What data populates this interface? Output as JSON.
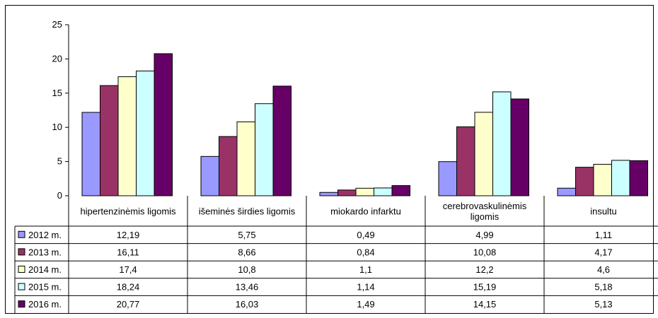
{
  "chart_data": {
    "type": "bar",
    "title": "",
    "xlabel": "",
    "ylabel": "",
    "ylim": [
      0,
      25
    ],
    "yticks": [
      0,
      5,
      10,
      15,
      20,
      25
    ],
    "grid": false,
    "legend": "data-table-left",
    "categories": [
      [
        "hipertenzinėmis ligomis"
      ],
      [
        "išeminės širdies ligomis"
      ],
      [
        "miokardo infarktu"
      ],
      [
        "cerebrovaskulinėmis",
        "ligomis"
      ],
      [
        "insultu"
      ]
    ],
    "series": [
      {
        "name": "2012 m.",
        "color": "#9999FF",
        "values": [
          12.19,
          5.75,
          0.49,
          4.99,
          1.11
        ],
        "labels": [
          "12,19",
          "5,75",
          "0,49",
          "4,99",
          "1,11"
        ]
      },
      {
        "name": "2013 m.",
        "color": "#993366",
        "values": [
          16.11,
          8.66,
          0.84,
          10.08,
          4.17
        ],
        "labels": [
          "16,11",
          "8,66",
          "0,84",
          "10,08",
          "4,17"
        ]
      },
      {
        "name": "2014 m.",
        "color": "#FFFFCC",
        "values": [
          17.4,
          10.8,
          1.1,
          12.2,
          4.6
        ],
        "labels": [
          "17,4",
          "10,8",
          "1,1",
          "12,2",
          "4,6"
        ]
      },
      {
        "name": "2015 m.",
        "color": "#CCFFFF",
        "values": [
          18.24,
          13.46,
          1.14,
          15.19,
          5.18
        ],
        "labels": [
          "18,24",
          "13,46",
          "1,14",
          "15,19",
          "5,18"
        ]
      },
      {
        "name": "2016 m.",
        "color": "#660066",
        "values": [
          20.77,
          16.03,
          1.49,
          14.15,
          5.13
        ],
        "labels": [
          "20,77",
          "16,03",
          "1,49",
          "14,15",
          "5,13"
        ]
      }
    ]
  }
}
